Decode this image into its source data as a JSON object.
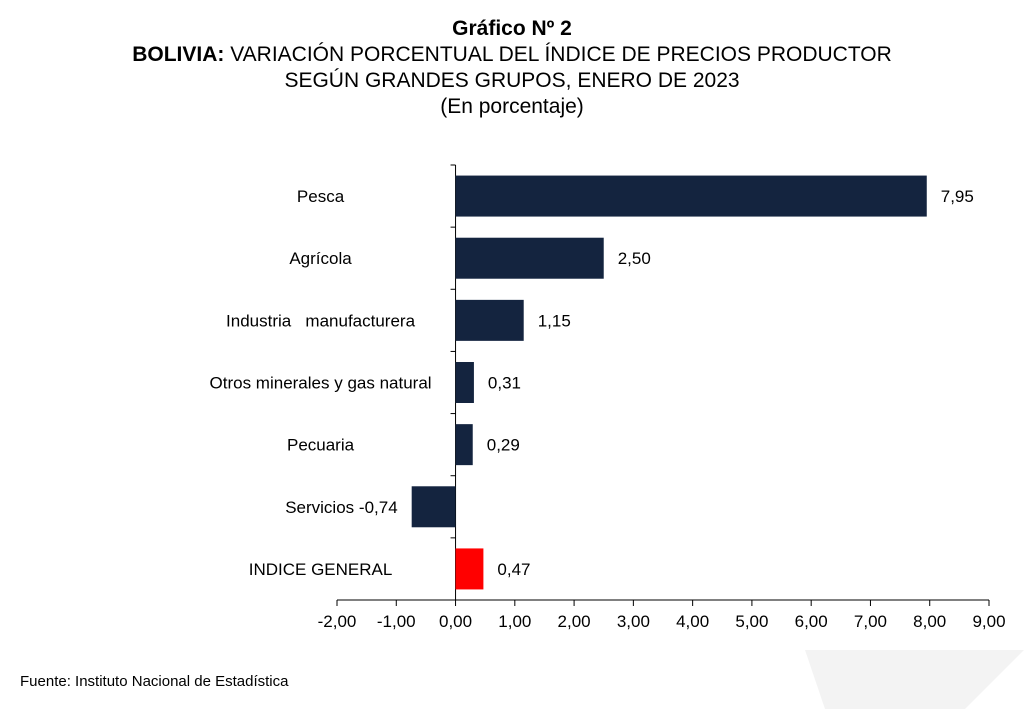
{
  "title": {
    "line1": "Gráfico Nº 2",
    "line2_bold": "BOLIVIA:",
    "line2_rest": " VARIACIÓN PORCENTUAL DEL ÍNDICE DE PRECIOS PRODUCTOR",
    "line3": "SEGÚN GRANDES GRUPOS, ENERO DE 2023",
    "line4": "(En porcentaje)"
  },
  "source": "Fuente: Instituto Nacional de Estadística",
  "colors": {
    "bar": "#14243f",
    "highlight": "#ff0000",
    "axis": "#000000"
  },
  "chart_data": {
    "type": "bar",
    "orientation": "horizontal",
    "categories": [
      "Pesca",
      "Agrícola",
      "Industria   manufacturera",
      "Otros minerales y gas natural",
      "Pecuaria",
      "Servicios",
      "INDICE GENERAL"
    ],
    "values": [
      7.95,
      2.5,
      1.15,
      0.31,
      0.29,
      -0.74,
      0.47
    ],
    "value_labels": [
      "7,95",
      "2,50",
      "1,15",
      "0,31",
      "0,29",
      "-0,74",
      "0,47"
    ],
    "highlight_index": 6,
    "xlim": [
      -2,
      9
    ],
    "x_ticks": [
      -2,
      -1,
      0,
      1,
      2,
      3,
      4,
      5,
      6,
      7,
      8,
      9
    ],
    "x_tick_labels": [
      "-2,00",
      "-1,00",
      "0,00",
      "1,00",
      "2,00",
      "3,00",
      "4,00",
      "5,00",
      "6,00",
      "7,00",
      "8,00",
      "9,00"
    ],
    "grid": false,
    "legend": "none"
  }
}
